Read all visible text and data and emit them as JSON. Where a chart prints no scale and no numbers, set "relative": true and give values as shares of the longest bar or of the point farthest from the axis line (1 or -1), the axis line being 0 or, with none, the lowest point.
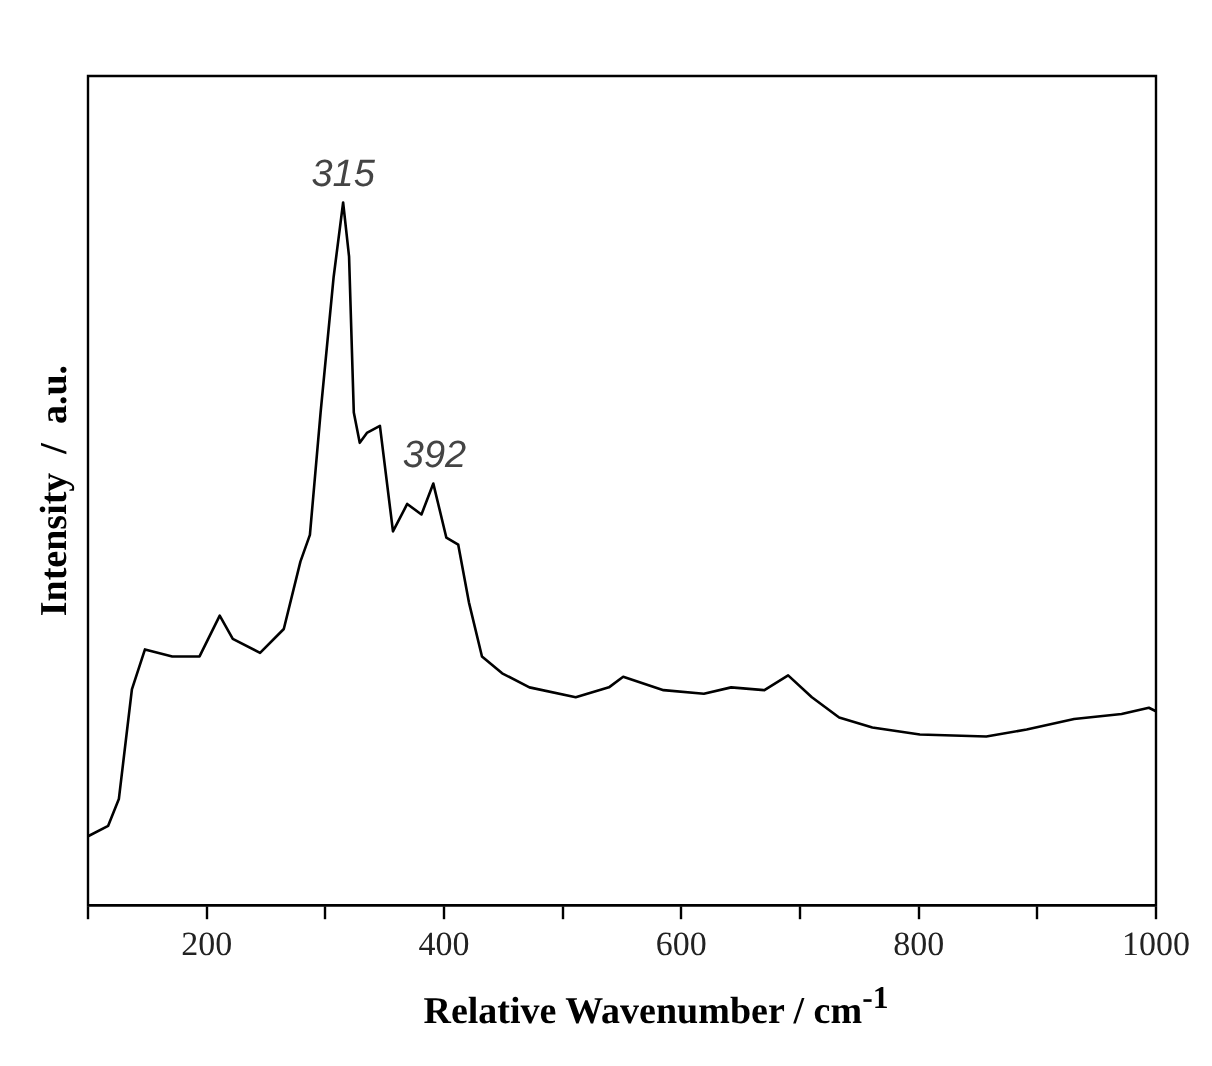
{
  "chart_data": {
    "type": "line",
    "relative": true,
    "xlabel": "Relative Wavenumber  /  cm$^{-1}$",
    "ylabel": "Intensity  /  a.u.",
    "xlim": [
      100,
      1000
    ],
    "xticks": [
      {
        "value": 100,
        "label": null
      },
      200,
      {
        "value": 300,
        "label": null
      },
      400,
      {
        "value": 500,
        "label": null
      },
      600,
      {
        "value": 700,
        "label": null
      },
      800,
      {
        "value": 900,
        "label": null
      },
      1000
    ],
    "grid": false,
    "legend": false,
    "marker": "none",
    "line_style": "solid",
    "annotations": [
      {
        "text": "315",
        "x": 315,
        "y": 1.0
      },
      {
        "text": "392",
        "x": 392,
        "y": 0.6
      }
    ],
    "series": [
      {
        "color": "#000000",
        "x": [
          100,
          117,
          126,
          137,
          148,
          171,
          194,
          211,
          222,
          245,
          265,
          279,
          287,
          296,
          307,
          315,
          320,
          324,
          329,
          335,
          346,
          357,
          369,
          381,
          391,
          402,
          412,
          421,
          432,
          449,
          472,
          511,
          539,
          551,
          585,
          619,
          642,
          670,
          690,
          710,
          733,
          761,
          801,
          857,
          891,
          931,
          971,
          994,
          1000
        ],
        "values": [
          0.098,
          0.113,
          0.151,
          0.307,
          0.364,
          0.354,
          0.354,
          0.412,
          0.379,
          0.359,
          0.393,
          0.489,
          0.527,
          0.701,
          0.894,
          1.0,
          0.923,
          0.701,
          0.658,
          0.672,
          0.682,
          0.532,
          0.571,
          0.556,
          0.6,
          0.523,
          0.513,
          0.431,
          0.354,
          0.33,
          0.31,
          0.296,
          0.31,
          0.325,
          0.306,
          0.301,
          0.31,
          0.306,
          0.327,
          0.296,
          0.267,
          0.253,
          0.243,
          0.24,
          0.25,
          0.265,
          0.272,
          0.281,
          0.276
        ]
      }
    ]
  }
}
